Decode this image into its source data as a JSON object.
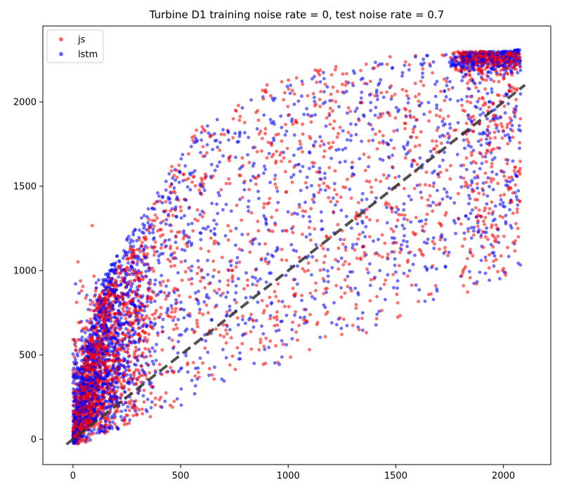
{
  "chart_data": {
    "type": "scatter",
    "title": "Turbine D1 training noise rate = 0, test noise rate = 0.7",
    "xlabel": "",
    "ylabel": "",
    "xlim": [
      -140,
      2220
    ],
    "ylim": [
      -150,
      2450
    ],
    "x_ticks": [
      0,
      500,
      1000,
      1500,
      2000
    ],
    "y_ticks": [
      0,
      500,
      1000,
      1500,
      2000
    ],
    "grid": false,
    "legend": {
      "position": "top-left",
      "entries": [
        "js",
        "lstm"
      ]
    },
    "reference_line": {
      "style": "dashed",
      "color": "#333333",
      "x": [
        -30,
        2100
      ],
      "y": [
        -30,
        2100
      ]
    },
    "series": [
      {
        "name": "js",
        "color": "#ff0000",
        "points_per_series": 2800,
        "distribution_note": "points lie above the identity line, dense near origin and along the top edge near y=2250-2300",
        "x": [
          10,
          30,
          60,
          90,
          120,
          150,
          200,
          250,
          300,
          350,
          400,
          450,
          500,
          550,
          600,
          650,
          700,
          800,
          900,
          1000,
          1100,
          1200,
          1300,
          1400,
          1500,
          1600,
          1700,
          1800,
          1900,
          2000,
          2050
        ],
        "y": [
          80,
          300,
          500,
          700,
          850,
          900,
          1000,
          1100,
          1200,
          1300,
          1500,
          1600,
          1700,
          1800,
          1900,
          1800,
          1950,
          2000,
          2100,
          2150,
          2200,
          2200,
          2250,
          2250,
          2280,
          2280,
          2300,
          2300,
          2300,
          2290,
          2300
        ]
      },
      {
        "name": "lstm",
        "color": "#0000ff",
        "points_per_series": 2800,
        "distribution_note": "points lie above the identity line, very dense near origin and cluster near (2060, 2250)",
        "x": [
          5,
          20,
          50,
          80,
          110,
          140,
          180,
          230,
          280,
          330,
          380,
          430,
          480,
          530,
          580,
          630,
          700,
          800,
          900,
          1000,
          1100,
          1200,
          1300,
          1400,
          1500,
          1600,
          1700,
          1800,
          1900,
          2000,
          2060
        ],
        "y": [
          50,
          250,
          450,
          650,
          800,
          950,
          1050,
          1150,
          1250,
          1350,
          1450,
          1550,
          1650,
          1750,
          1850,
          1900,
          1950,
          2000,
          2050,
          2100,
          2150,
          2200,
          2220,
          2240,
          2260,
          2270,
          2280,
          2290,
          2300,
          2300,
          2310
        ]
      }
    ]
  }
}
